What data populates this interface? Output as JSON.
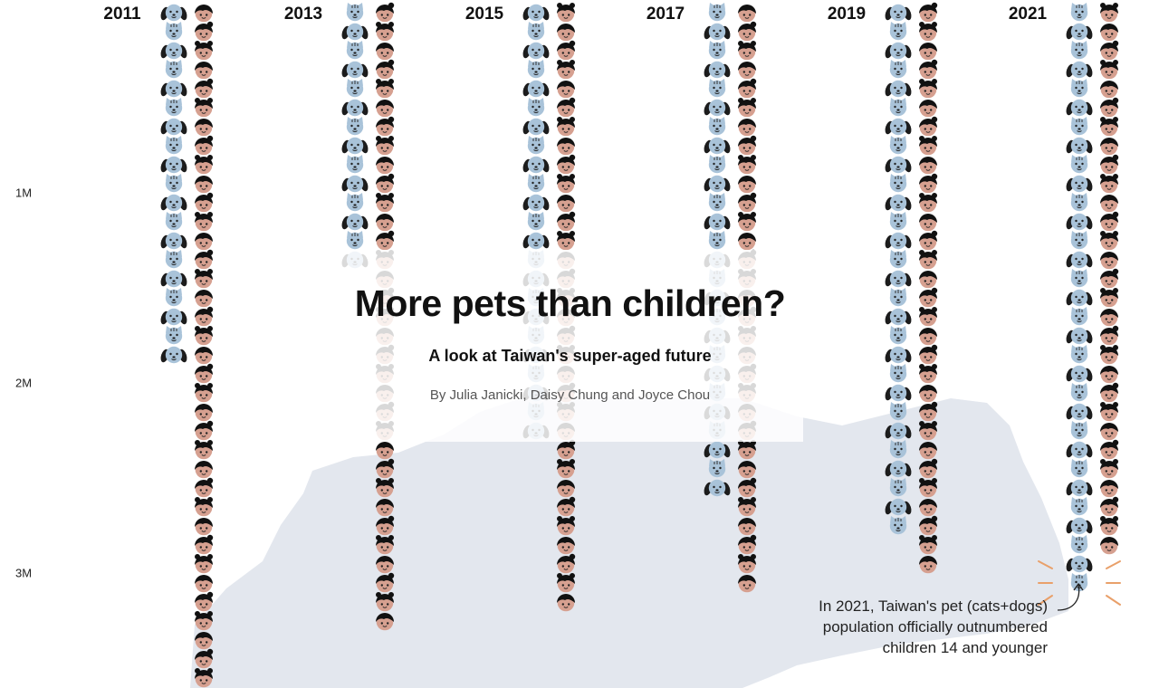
{
  "chart_data": {
    "type": "pictogram",
    "title": "More pets than children?",
    "subtitle": "A look at Taiwan's super-aged future",
    "byline": "By Julia Janicki, Daisy Chung and Joyce Chou",
    "unit_per_icon": 100000,
    "y_ticks": [
      {
        "value": 1000000,
        "label": "1M"
      },
      {
        "value": 2000000,
        "label": "2M"
      },
      {
        "value": 3000000,
        "label": "3M"
      }
    ],
    "years": [
      "2011",
      "2013",
      "2015",
      "2017",
      "2019",
      "2021"
    ],
    "series": [
      {
        "name": "Pets (cats+dogs)",
        "values": [
          1900000,
          1350000,
          2300000,
          2550000,
          2800000,
          3050000
        ]
      },
      {
        "name": "Children 14 and younger",
        "values": [
          3600000,
          3300000,
          3200000,
          3100000,
          3000000,
          2850000
        ]
      }
    ],
    "annotation": "In 2021, Taiwan's pet (cats+dogs) population officially outnumbered children 14 and younger"
  },
  "colors": {
    "pet": "#a9c3d9",
    "child_skin": "#d6a090",
    "hair": "#111111",
    "background_shape": "#e3e7ee",
    "highlight": "#e9a06a"
  }
}
